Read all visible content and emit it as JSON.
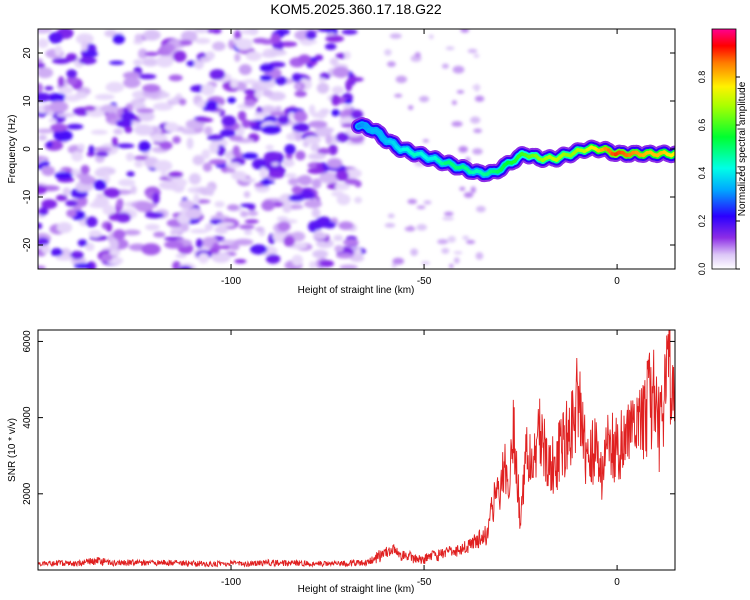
{
  "figure_title": "KOM5.2025.360.17.18.G22",
  "chart_data": [
    {
      "type": "heatmap",
      "title": "KOM5.2025.360.17.18.G22",
      "xlabel": "Height of straight line (km)",
      "ylabel": "Frequency (Hz)",
      "xlim": [
        -150,
        15
      ],
      "ylim": [
        -25,
        25
      ],
      "xticks": [
        -100,
        -50,
        0
      ],
      "xtick_labels": [
        "-100",
        "-50",
        "0"
      ],
      "yticks": [
        -20,
        -10,
        0,
        10,
        20
      ],
      "ytick_labels": [
        "-20",
        "-10",
        "0",
        "10",
        "20"
      ],
      "grid": false,
      "colorbar": {
        "label": "Normalized spectral amplitude",
        "range": [
          0,
          1
        ],
        "ticks": [
          0,
          0.2,
          0.4,
          0.6,
          0.8
        ],
        "tick_labels": [
          "0.0",
          "0.2",
          "0.4",
          "0.6",
          "0.8"
        ],
        "colormap": "rainbow (white-violet-blue-cyan-green-yellow-red-magenta)"
      },
      "noise_region": {
        "x_start": -150,
        "x_end": -67,
        "typical_amplitude": 0.1
      },
      "signal_track": {
        "x": [
          -67,
          -63,
          -60,
          -56,
          -52,
          -48,
          -44,
          -40,
          -36,
          -32,
          -28,
          -24,
          -20,
          -16,
          -12,
          -8,
          -4,
          0,
          4,
          8,
          12,
          15
        ],
        "freq": [
          5,
          4,
          2,
          0,
          -1,
          -2,
          -3,
          -4,
          -5,
          -5,
          -3,
          -1,
          -2,
          -2,
          -1,
          0,
          0,
          -1,
          -1,
          -1,
          -1,
          -1
        ],
        "amp": [
          0.3,
          0.35,
          0.35,
          0.4,
          0.45,
          0.4,
          0.5,
          0.5,
          0.45,
          0.5,
          0.55,
          0.6,
          0.65,
          0.7,
          0.65,
          0.7,
          0.8,
          0.9,
          0.85,
          0.8,
          0.8,
          0.75
        ]
      }
    },
    {
      "type": "line",
      "xlabel": "Height of straight line (km)",
      "ylabel": "SNR (10 * v/v)",
      "xlim": [
        -150,
        15
      ],
      "ylim": [
        0,
        6300
      ],
      "xticks": [
        -100,
        -50,
        0
      ],
      "xtick_labels": [
        "-100",
        "-50",
        "0"
      ],
      "yticks": [
        2000,
        4000,
        6000
      ],
      "ytick_labels": [
        "2000",
        "4000",
        "6000"
      ],
      "grid": false,
      "line_color": "#e02020",
      "series": [
        {
          "name": "SNR",
          "x": [
            -150,
            -145,
            -140,
            -135,
            -130,
            -125,
            -120,
            -115,
            -110,
            -105,
            -100,
            -95,
            -90,
            -85,
            -80,
            -75,
            -70,
            -65,
            -60,
            -58,
            -56,
            -54,
            -52,
            -50,
            -48,
            -46,
            -44,
            -42,
            -40,
            -38,
            -36,
            -34,
            -32,
            -30,
            -29,
            -28,
            -27,
            -26,
            -25,
            -24,
            -22,
            -20,
            -18,
            -16,
            -14,
            -12,
            -10,
            -8,
            -6,
            -4,
            -2,
            0,
            2,
            4,
            6,
            8,
            10,
            11,
            12,
            13,
            14,
            15
          ],
          "y": [
            150,
            180,
            160,
            250,
            170,
            200,
            180,
            190,
            170,
            160,
            180,
            170,
            190,
            180,
            170,
            160,
            180,
            190,
            450,
            600,
            400,
            350,
            300,
            280,
            350,
            400,
            500,
            450,
            600,
            650,
            800,
            900,
            1800,
            2200,
            3000,
            1500,
            3800,
            2600,
            1200,
            2800,
            3100,
            3500,
            3000,
            2700,
            3400,
            3600,
            4600,
            2800,
            3200,
            2600,
            3400,
            3100,
            3700,
            3500,
            3900,
            4300,
            4800,
            3500,
            4400,
            6200,
            4800,
            4900
          ]
        }
      ]
    }
  ]
}
